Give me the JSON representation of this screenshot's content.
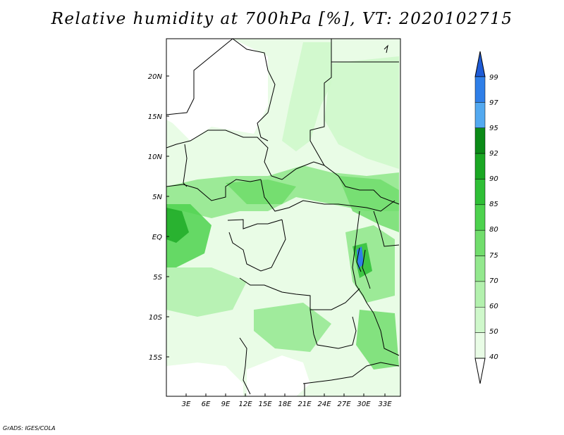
{
  "title": "Relative humidity at 700hPa [%], VT: 2020102715",
  "credit": "GrADS: IGES/COLA",
  "map": {
    "lat_labels": [
      "20N",
      "15N",
      "10N",
      "5N",
      "EQ",
      "5S",
      "10S",
      "15S"
    ],
    "lon_labels": [
      "3E",
      "6E",
      "9E",
      "12E",
      "15E",
      "18E",
      "21E",
      "24E",
      "27E",
      "30E",
      "33E"
    ]
  },
  "colorbar": {
    "levels": [
      "99",
      "97",
      "95",
      "92",
      "90",
      "85",
      "80",
      "75",
      "70",
      "60",
      "50",
      "40"
    ],
    "colors": [
      "#1e5bd6",
      "#2f7fe8",
      "#53a9f0",
      "#0b8a17",
      "#1aa723",
      "#2fbf36",
      "#4dd24e",
      "#71dd6c",
      "#93e88e",
      "#b3f1ae",
      "#cff8cb",
      "#e9fce6",
      "#ffffff"
    ]
  }
}
